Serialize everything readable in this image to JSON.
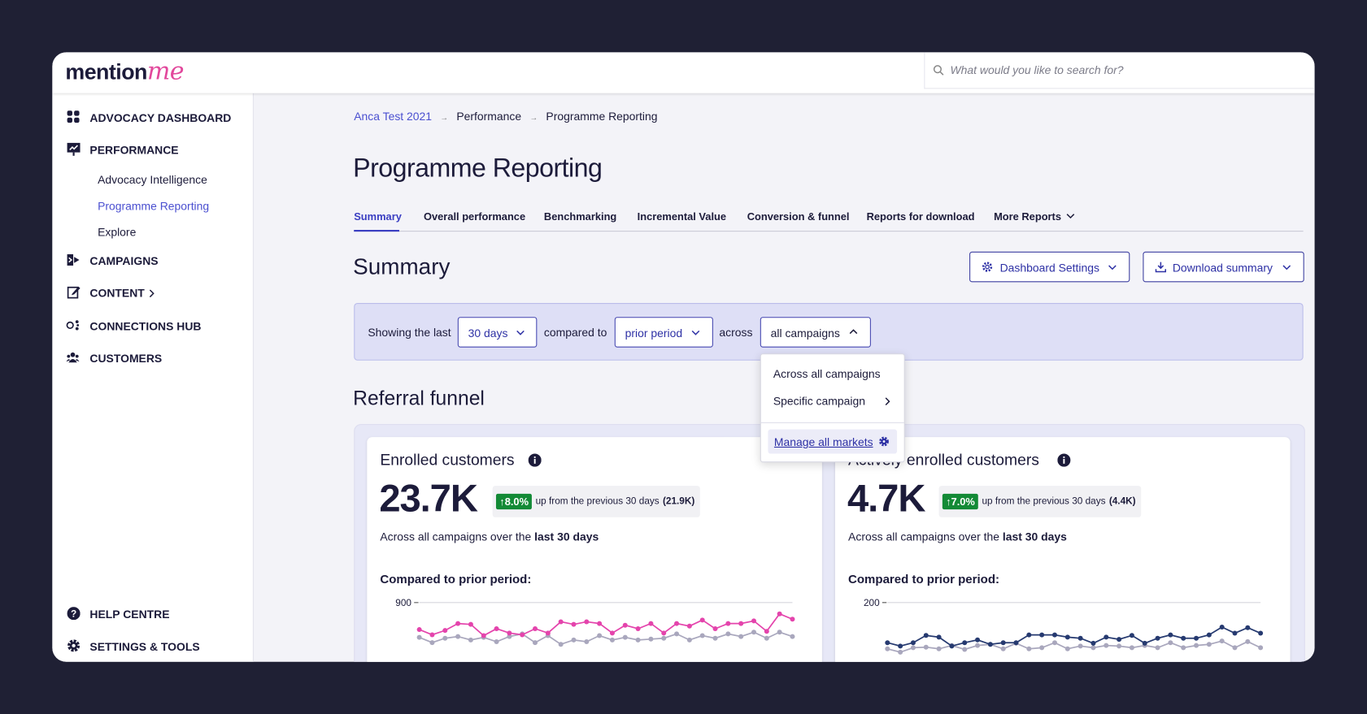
{
  "logo": {
    "text": "mention",
    "accent": "me"
  },
  "search": {
    "placeholder": "What would you like to search for?"
  },
  "sidebar": {
    "items": [
      {
        "label": "ADVOCACY DASHBOARD"
      },
      {
        "label": "PERFORMANCE",
        "children": [
          "Advocacy Intelligence",
          "Programme Reporting",
          "Explore"
        ]
      },
      {
        "label": "CAMPAIGNS"
      },
      {
        "label": "CONTENT"
      },
      {
        "label": "CONNECTIONS HUB"
      },
      {
        "label": "CUSTOMERS"
      }
    ],
    "footer": [
      "HELP CENTRE",
      "SETTINGS & TOOLS"
    ]
  },
  "breadcrumb": [
    "Anca Test 2021",
    "Performance",
    "Programme Reporting"
  ],
  "page_title": "Programme Reporting",
  "tabs": [
    "Summary",
    "Overall performance",
    "Benchmarking",
    "Incremental Value",
    "Conversion & funnel",
    "Reports for download",
    "More Reports"
  ],
  "section_title": "Summary",
  "buttons": [
    "Dashboard Settings",
    "Download summary"
  ],
  "filter": {
    "prefix": "Showing the last",
    "period": "30 days",
    "compared": "compared to",
    "comparison": "prior period",
    "across": "across",
    "scope": "all campaigns"
  },
  "dropdown": {
    "options": [
      "Across all campaigns",
      "Specific campaign"
    ],
    "link": "Manage all markets"
  },
  "funnel_title": "Referral funnel",
  "cards": [
    {
      "title": "Enrolled customers",
      "value": "23.7K",
      "change": "8.0%",
      "change_text": "up from the previous 30 days",
      "previous": "(21.9K)",
      "note_prefix": "Across all campaigns over the",
      "note_bold": "last 30 days",
      "compare_label": "Compared to prior period:",
      "chart": {
        "type": "line",
        "ylim": [
          0,
          900
        ],
        "yticks": [
          900
        ],
        "grid": true,
        "series": [
          {
            "color": "#a9a7bd",
            "values": [
              619,
              577,
              612,
              626,
              598,
              619,
              584,
              626,
              647,
              577,
              633,
              563,
              598,
              584,
              633,
              598,
              619,
              598,
              605,
              612,
              647,
              598,
              633,
              612,
              647,
              626,
              661,
              612,
              661,
              626
            ]
          },
          {
            "color": "#e444ac",
            "values": [
              682,
              640,
              675,
              731,
              724,
              633,
              689,
              654,
              640,
              689,
              654,
              745,
              724,
              745,
              731,
              654,
              717,
              689,
              731,
              654,
              731,
              710,
              759,
              689,
              731,
              731,
              752,
              668,
              809,
              766
            ]
          }
        ]
      }
    },
    {
      "title": "Actively enrolled customers",
      "value": "4.7K",
      "change": "7.0%",
      "change_text": "up from the previous 30 days",
      "previous": "(4.4K)",
      "note_prefix": "Across all campaigns over the",
      "note_bold": "last 30 days",
      "compare_label": "Compared to prior period:",
      "chart": {
        "type": "line",
        "ylim": [
          0,
          200
        ],
        "yticks": [
          200
        ],
        "grid": true,
        "series": [
          {
            "color": "#a9a7bd",
            "values": [
              117,
              111,
              119,
              120,
              117,
              123,
              116,
              123,
              125,
              117,
              127,
              117,
              119,
              128,
              117,
              122,
              119,
              123,
              122,
              119,
              123,
              119,
              128,
              119,
              123,
              125,
              131,
              119,
              130,
              119
            ]
          },
          {
            "color": "#263a70",
            "values": [
              128,
              122,
              128,
              141,
              138,
              122,
              128,
              133,
              125,
              128,
              128,
              142,
              142,
              142,
              138,
              136,
              127,
              138,
              134,
              141,
              127,
              136,
              142,
              136,
              136,
              142,
              156,
              145,
              155,
              145
            ]
          }
        ]
      }
    }
  ]
}
